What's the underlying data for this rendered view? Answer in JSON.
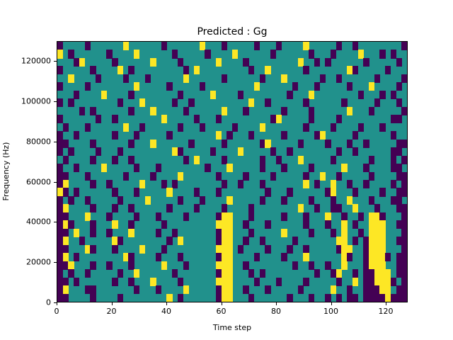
{
  "figure": {
    "title": "Predicted : Gg",
    "xlabel": "Time step",
    "ylabel": "Frequency (Hz)"
  },
  "chart_data": {
    "type": "heatmap",
    "title": "Predicted : Gg",
    "xlabel": "Time step",
    "ylabel": "Frequency (Hz)",
    "x_range": [
      0,
      128
    ],
    "y_range": [
      0,
      130000
    ],
    "x_ticks": [
      0,
      20,
      40,
      60,
      80,
      100,
      120
    ],
    "y_ticks": [
      0,
      20000,
      40000,
      60000,
      80000,
      100000,
      120000
    ],
    "legend": "none",
    "grid_lines": false,
    "background_color": "#ffffff",
    "colormap": {
      "0": "#21918c",
      "1": "#440154",
      "2": "#fde725"
    },
    "value_meaning": {
      "0": "mid",
      "1": "low",
      "2": "high"
    },
    "grid_cols": 64,
    "grid_rows": 32,
    "grid_note": "rows top-to-bottom (130000 Hz to 0 Hz), cols left-to-right (time 0 to 128); 0=teal 1=purple 2=yellow",
    "grid": [
      "1000010000002000000100000020001000001000100002000001001000000001",
      "2010000001000020000001000001000020000001000000100010000200010100",
      "0001200000100000020000100000020000100000000020010100000010000010",
      "1000001000020100000000010200000000010020000001000000021000001000",
      "0020000100001000100000020000001000000100020000001001000000100001",
      "1000010000000020000010000010000000002000000100010000010002000010",
      "0001000020000100000000100000200001000000001000200000000100010100",
      "1010000000010002000001001000000000020010000001000000100000100010",
      "0000101000000100020000010000002000100000010000100000020001000001",
      "1000000100100000000200000100010000000001200000100001000000000110",
      "0100010000002001000000100010000010000200000001000010000100010000",
      "1001000000100010000010000000020100010000010000012000001000000100",
      "1100001000000100020000001000001000000120000010000100010010000011",
      "1010000100010000000002100000100002000001001000000001001000000110",
      "0100001000100100000000010200001000000100100020000010000001000101",
      "1001000020000010001000000001000200000100010000100000200010000110",
      "1100010000001000010000200000010000100001000001002001000001000011",
      "1200001001000002000101000000001001000100000002010020010010000101",
      "2101000000100010000020000100010000000010001000000120001000010011",
      "1010010000010000200000100010000200000100010000100010020001000110",
      "1200001000100100000010000100001000010000000020010011002000100011",
      "1100020001000010001000010000012200010000010001000200100102210001",
      "1210001000200100000100000000022200100010000001000100201002220011",
      "1102001001000200001001000000012200010000020000100010200102220001",
      "1200100000210000000010200000012200100100000100000002201012220011",
      "1100021000100002000100000000022201000010001001000001220012220001",
      "1201000000002100001000100000012200001000010002000000210012221011",
      "1120001001000100000200010000022200100000000100100100200012220011",
      "1010010000010020000001000000012200010100000000010012001011222011",
      "1101000000100100020000100000022200001000100001000001002011222101",
      "1200011000000010001000020000012200100010000010000020010011122011",
      "1100001000010000000020100000012200010000001000100101011011112111"
    ]
  }
}
